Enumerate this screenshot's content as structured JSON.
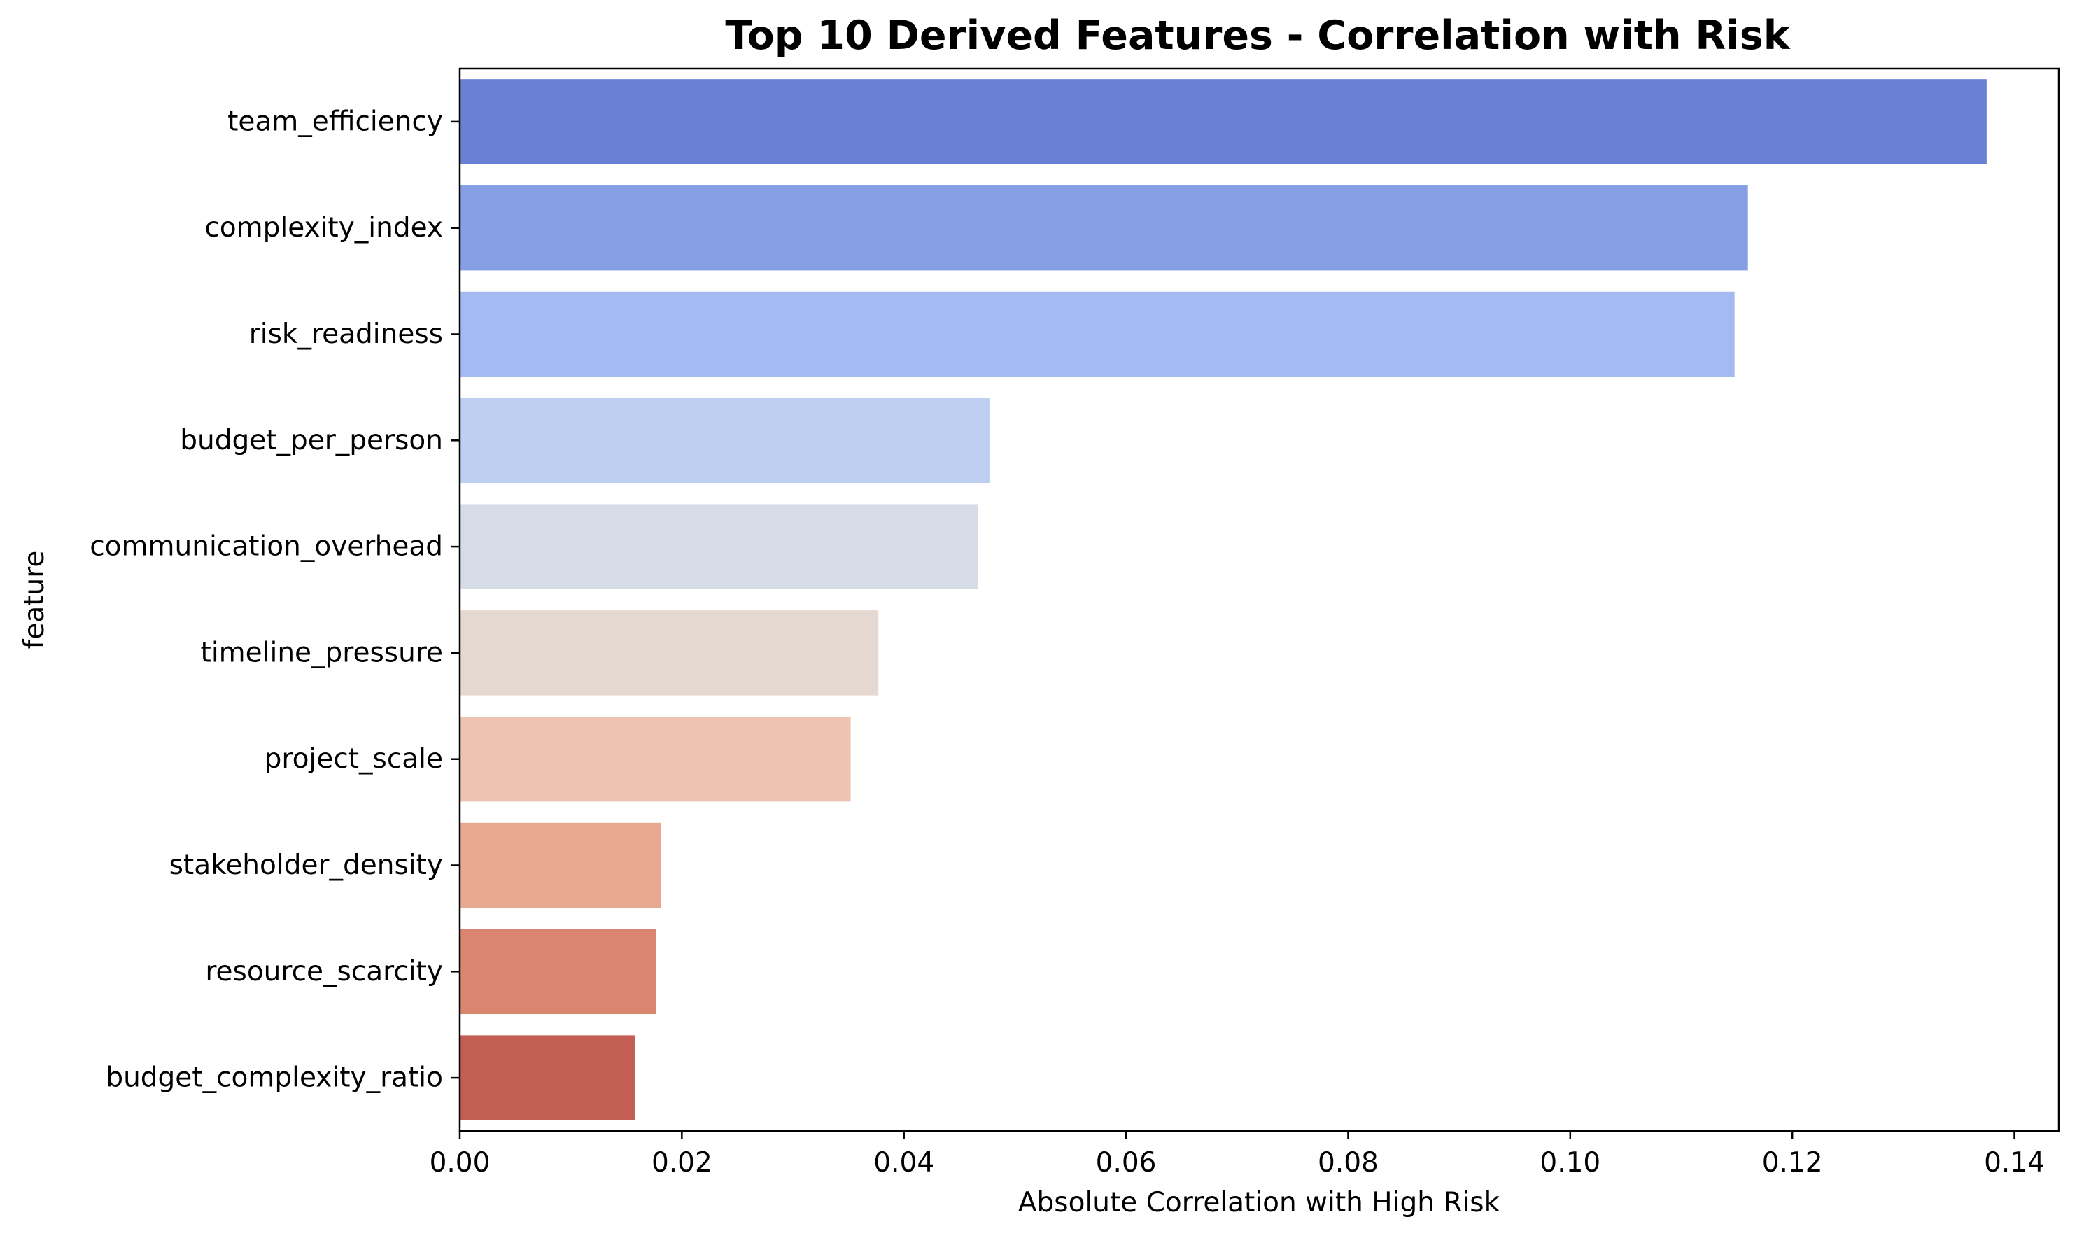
{
  "chart_data": {
    "type": "bar",
    "orientation": "horizontal",
    "title": "Top 10 Derived Features - Correlation with Risk",
    "xlabel": "Absolute Correlation with High Risk",
    "ylabel": "feature",
    "xlim": [
      0,
      0.144
    ],
    "xticks": [
      0.0,
      0.02,
      0.04,
      0.06,
      0.08,
      0.1,
      0.12,
      0.14
    ],
    "xtick_labels": [
      "0.00",
      "0.02",
      "0.04",
      "0.06",
      "0.08",
      "0.10",
      "0.12",
      "0.14"
    ],
    "grid": false,
    "categories": [
      "team_efficiency",
      "complexity_index",
      "risk_readiness",
      "budget_per_person",
      "communication_overhead",
      "timeline_pressure",
      "project_scale",
      "stakeholder_density",
      "resource_scarcity",
      "budget_complexity_ratio"
    ],
    "values": [
      0.1375,
      0.116,
      0.1148,
      0.0477,
      0.0467,
      0.0377,
      0.0352,
      0.0181,
      0.0177,
      0.0158
    ],
    "colors": [
      "#6a80d2",
      "#869fe4",
      "#a3bbf2",
      "#bdd0f2",
      "#d6dce6",
      "#e5d8d0",
      "#ecc4b1",
      "#e8a892",
      "#da8570",
      "#c25e53"
    ]
  }
}
